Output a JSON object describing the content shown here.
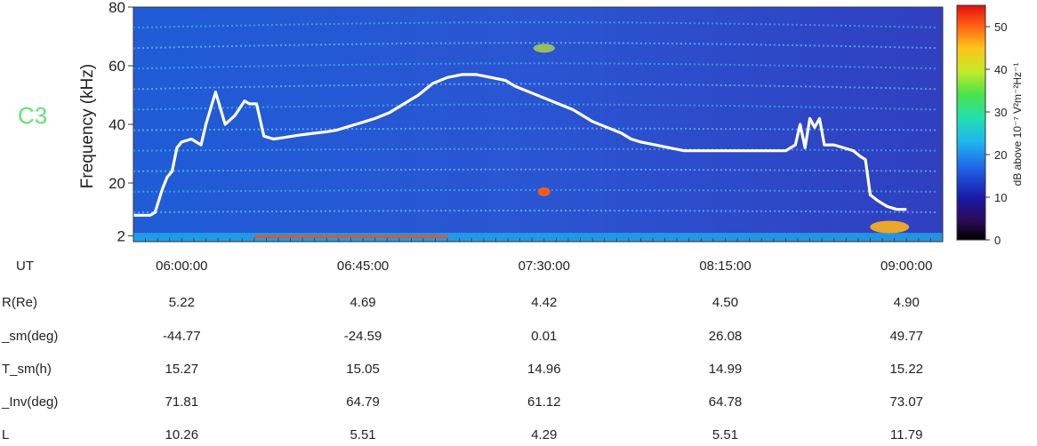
{
  "chart_data": {
    "type": "heatmap",
    "title": "",
    "label": "C3",
    "ylabel": "Frequency (kHz)",
    "yticks": [
      "80",
      "60",
      "40",
      "20",
      "2"
    ],
    "ytick_values": [
      80,
      60,
      40,
      20,
      2
    ],
    "ylim": [
      0,
      80
    ],
    "colorbar": {
      "label": "dB above 10⁻⁷ V²m⁻²Hz⁻¹",
      "ticks": [
        "50",
        "40",
        "30",
        "20",
        "10",
        "0"
      ],
      "tick_values": [
        50,
        40,
        30,
        20,
        10,
        0
      ],
      "range": [
        0,
        55
      ]
    },
    "time_ticks": [
      "06:00:00",
      "06:45:00",
      "07:30:00",
      "08:15:00",
      "09:00:00"
    ],
    "time_hours": [
      6.0,
      6.75,
      7.5,
      8.25,
      9.0
    ],
    "xlim_hours": [
      5.8,
      9.15
    ],
    "trace": {
      "x_hours": [
        5.8,
        5.87,
        5.89,
        5.92,
        5.94,
        5.96,
        5.98,
        6.0,
        6.04,
        6.08,
        6.1,
        6.14,
        6.18,
        6.22,
        6.26,
        6.28,
        6.31,
        6.34,
        6.38,
        6.42,
        6.46,
        6.5,
        6.55,
        6.6,
        6.64,
        6.68,
        6.72,
        6.76,
        6.8,
        6.86,
        6.92,
        6.98,
        7.04,
        7.1,
        7.16,
        7.22,
        7.28,
        7.34,
        7.38,
        7.44,
        7.5,
        7.56,
        7.62,
        7.66,
        7.7,
        7.76,
        7.82,
        7.86,
        7.9,
        7.96,
        8.02,
        8.08,
        8.14,
        8.2,
        8.26,
        8.32,
        8.38,
        8.44,
        8.5,
        8.54,
        8.56,
        8.58,
        8.6,
        8.62,
        8.64,
        8.66,
        8.7,
        8.74,
        8.78,
        8.81,
        8.83,
        8.85,
        8.88,
        8.92,
        8.96,
        9.0
      ],
      "y_khz": [
        9,
        9,
        10,
        18,
        22,
        24,
        32,
        34,
        35,
        33,
        40,
        51,
        40,
        43,
        48,
        47,
        47,
        36,
        35,
        35.5,
        36,
        36.5,
        37,
        37.5,
        38,
        39,
        40,
        41,
        42,
        44,
        47,
        50,
        54,
        56,
        57,
        57,
        56,
        55,
        53,
        51,
        49,
        47,
        45,
        43,
        41,
        39,
        37,
        35,
        34,
        33,
        32,
        31,
        31,
        31,
        31,
        31,
        31,
        31,
        31,
        33,
        40,
        32,
        42,
        39,
        42,
        33,
        33,
        32,
        31,
        29,
        28,
        16,
        14,
        12,
        11,
        11
      ]
    },
    "ephemeris": {
      "rows": [
        {
          "label": "UT",
          "values": [
            "06:00:00",
            "06:45:00",
            "07:30:00",
            "08:15:00",
            "09:00:00"
          ]
        },
        {
          "label": "R(Re)",
          "values": [
            "5.22",
            "4.69",
            "4.42",
            "4.50",
            "4.90"
          ]
        },
        {
          "label": "_sm(deg)",
          "values": [
            "-44.77",
            "-24.59",
            "0.01",
            "26.08",
            "49.77"
          ]
        },
        {
          "label": "T_sm(h)",
          "values": [
            "15.27",
            "15.05",
            "14.96",
            "14.99",
            "15.22"
          ]
        },
        {
          "label": "_Inv(deg)",
          "values": [
            "71.81",
            "64.79",
            "61.12",
            "64.78",
            "73.07"
          ]
        },
        {
          "label": "L",
          "values": [
            "10.26",
            "5.51",
            "4.29",
            "5.51",
            "11.79"
          ]
        }
      ]
    }
  }
}
